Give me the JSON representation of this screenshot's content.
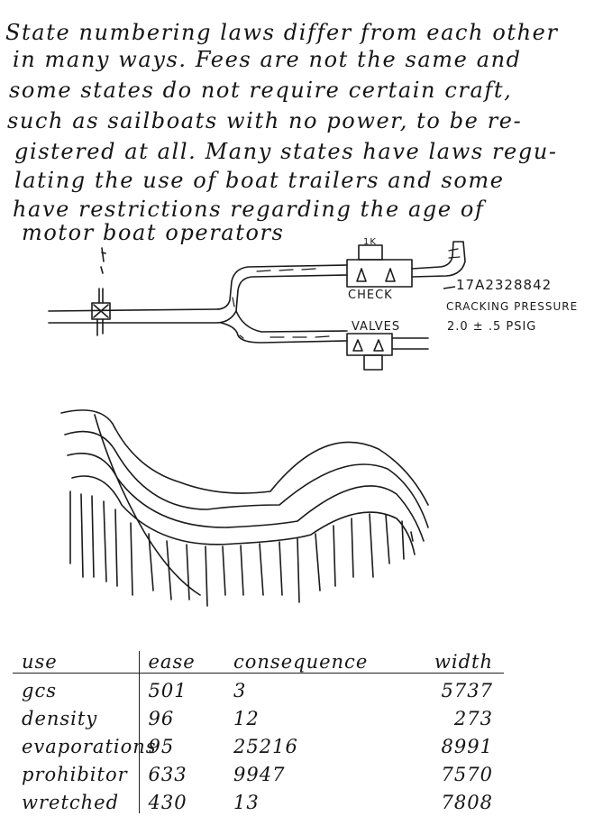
{
  "paragraph": {
    "lines": [
      "State numbering laws differ from each other",
      "in many ways. Fees are not the same and",
      "some states do not require certain craft,",
      "such as sailboats with no power, to be re-",
      "gistered at all. Many states have laws regu-",
      "lating the use of boat trailers and some",
      "have restrictions regarding the age of",
      "motor boat operators"
    ]
  },
  "diagram": {
    "labels": {
      "check": "CHECK",
      "valves": "VALVES",
      "top_tag": "1K",
      "part_number": "17A2328842",
      "cracking": "CRACKING PRESSURE",
      "pressure": "2.0 ± .5 PSIG"
    }
  },
  "table": {
    "headers": [
      "use",
      "ease",
      "consequence",
      "width"
    ],
    "rows": [
      [
        "gcs",
        "501",
        "3",
        "5737"
      ],
      [
        "density",
        "96",
        "12",
        "273"
      ],
      [
        "evaporations",
        "95",
        "25216",
        "8991"
      ],
      [
        "prohibitor",
        "633",
        "9947",
        "7570"
      ],
      [
        "wretched",
        "430",
        "13",
        "7808"
      ]
    ]
  }
}
